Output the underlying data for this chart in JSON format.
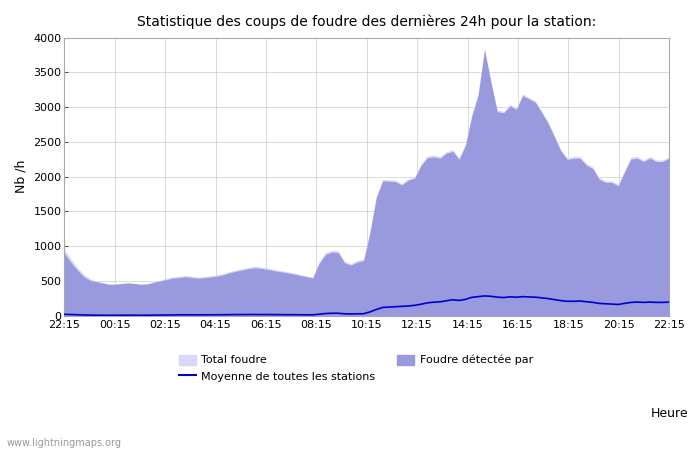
{
  "title": "Statistique des coups de foudre des dernières 24h pour la station:",
  "xlabel": "Heure",
  "ylabel": "Nb /h",
  "xlim": [
    0,
    96
  ],
  "ylim": [
    0,
    4000
  ],
  "yticks": [
    0,
    500,
    1000,
    1500,
    2000,
    2500,
    3000,
    3500,
    4000
  ],
  "xtick_labels": [
    "22:15",
    "00:15",
    "02:15",
    "04:15",
    "06:15",
    "08:15",
    "10:15",
    "12:15",
    "14:15",
    "16:15",
    "18:15",
    "20:15",
    "22:15"
  ],
  "xtick_positions": [
    0,
    8,
    16,
    24,
    32,
    40,
    48,
    56,
    64,
    72,
    80,
    88,
    96
  ],
  "color_total": "#d8d8f8",
  "color_detected": "#9999dd",
  "color_mean": "#0000cc",
  "legend_label_total": "Total foudre",
  "legend_label_detected": "Foudre détectée par",
  "legend_label_mean": "Moyenne de toutes les stations",
  "watermark": "www.lightningmaps.org",
  "background_color": "#ffffff",
  "grid_color": "#cccccc",
  "total_foudre": [
    950,
    820,
    700,
    600,
    530,
    500,
    480,
    460,
    460,
    470,
    480,
    470,
    460,
    465,
    490,
    510,
    540,
    560,
    570,
    580,
    570,
    555,
    565,
    575,
    590,
    610,
    640,
    660,
    680,
    700,
    710,
    700,
    685,
    665,
    650,
    635,
    615,
    595,
    575,
    555,
    770,
    910,
    940,
    935,
    785,
    750,
    795,
    815,
    1220,
    1720,
    1960,
    1955,
    1950,
    1900,
    1970,
    2000,
    2180,
    2300,
    2310,
    2290,
    2360,
    2390,
    2275,
    2470,
    2900,
    3200,
    3850,
    3380,
    2960,
    2940,
    3040,
    2990,
    3190,
    3140,
    3090,
    2940,
    2790,
    2590,
    2390,
    2270,
    2290,
    2290,
    2190,
    2140,
    1990,
    1940,
    1940,
    1890,
    2090,
    2280,
    2290,
    2240,
    2290,
    2240,
    2240,
    2290
  ],
  "foudre_detectee": [
    900,
    770,
    660,
    565,
    510,
    490,
    470,
    450,
    452,
    462,
    470,
    462,
    450,
    455,
    480,
    500,
    520,
    540,
    550,
    560,
    550,
    540,
    548,
    558,
    570,
    590,
    620,
    640,
    660,
    680,
    690,
    680,
    665,
    648,
    633,
    618,
    600,
    580,
    562,
    542,
    750,
    880,
    915,
    910,
    762,
    728,
    772,
    792,
    1195,
    1700,
    1940,
    1935,
    1930,
    1880,
    1948,
    1975,
    2155,
    2270,
    2285,
    2265,
    2335,
    2365,
    2250,
    2445,
    2870,
    3170,
    3820,
    3355,
    2935,
    2918,
    3018,
    2968,
    3165,
    3118,
    3068,
    2918,
    2765,
    2568,
    2368,
    2248,
    2265,
    2265,
    2165,
    2118,
    1965,
    1918,
    1918,
    1868,
    2065,
    2255,
    2265,
    2218,
    2265,
    2218,
    2218,
    2265
  ],
  "moyenne": [
    20,
    18,
    15,
    12,
    10,
    8,
    7,
    7,
    7,
    8,
    9,
    8,
    7,
    8,
    9,
    10,
    11,
    12,
    13,
    14,
    13,
    13,
    13,
    14,
    14,
    15,
    16,
    17,
    17,
    18,
    18,
    17,
    17,
    16,
    16,
    15,
    15,
    14,
    13,
    13,
    22,
    32,
    36,
    36,
    28,
    26,
    28,
    29,
    55,
    90,
    120,
    125,
    130,
    135,
    140,
    150,
    165,
    185,
    195,
    200,
    215,
    230,
    220,
    235,
    265,
    275,
    285,
    280,
    268,
    262,
    272,
    267,
    275,
    270,
    267,
    257,
    247,
    232,
    218,
    208,
    208,
    212,
    202,
    193,
    178,
    172,
    168,
    162,
    178,
    192,
    197,
    192,
    197,
    192,
    192,
    197
  ]
}
